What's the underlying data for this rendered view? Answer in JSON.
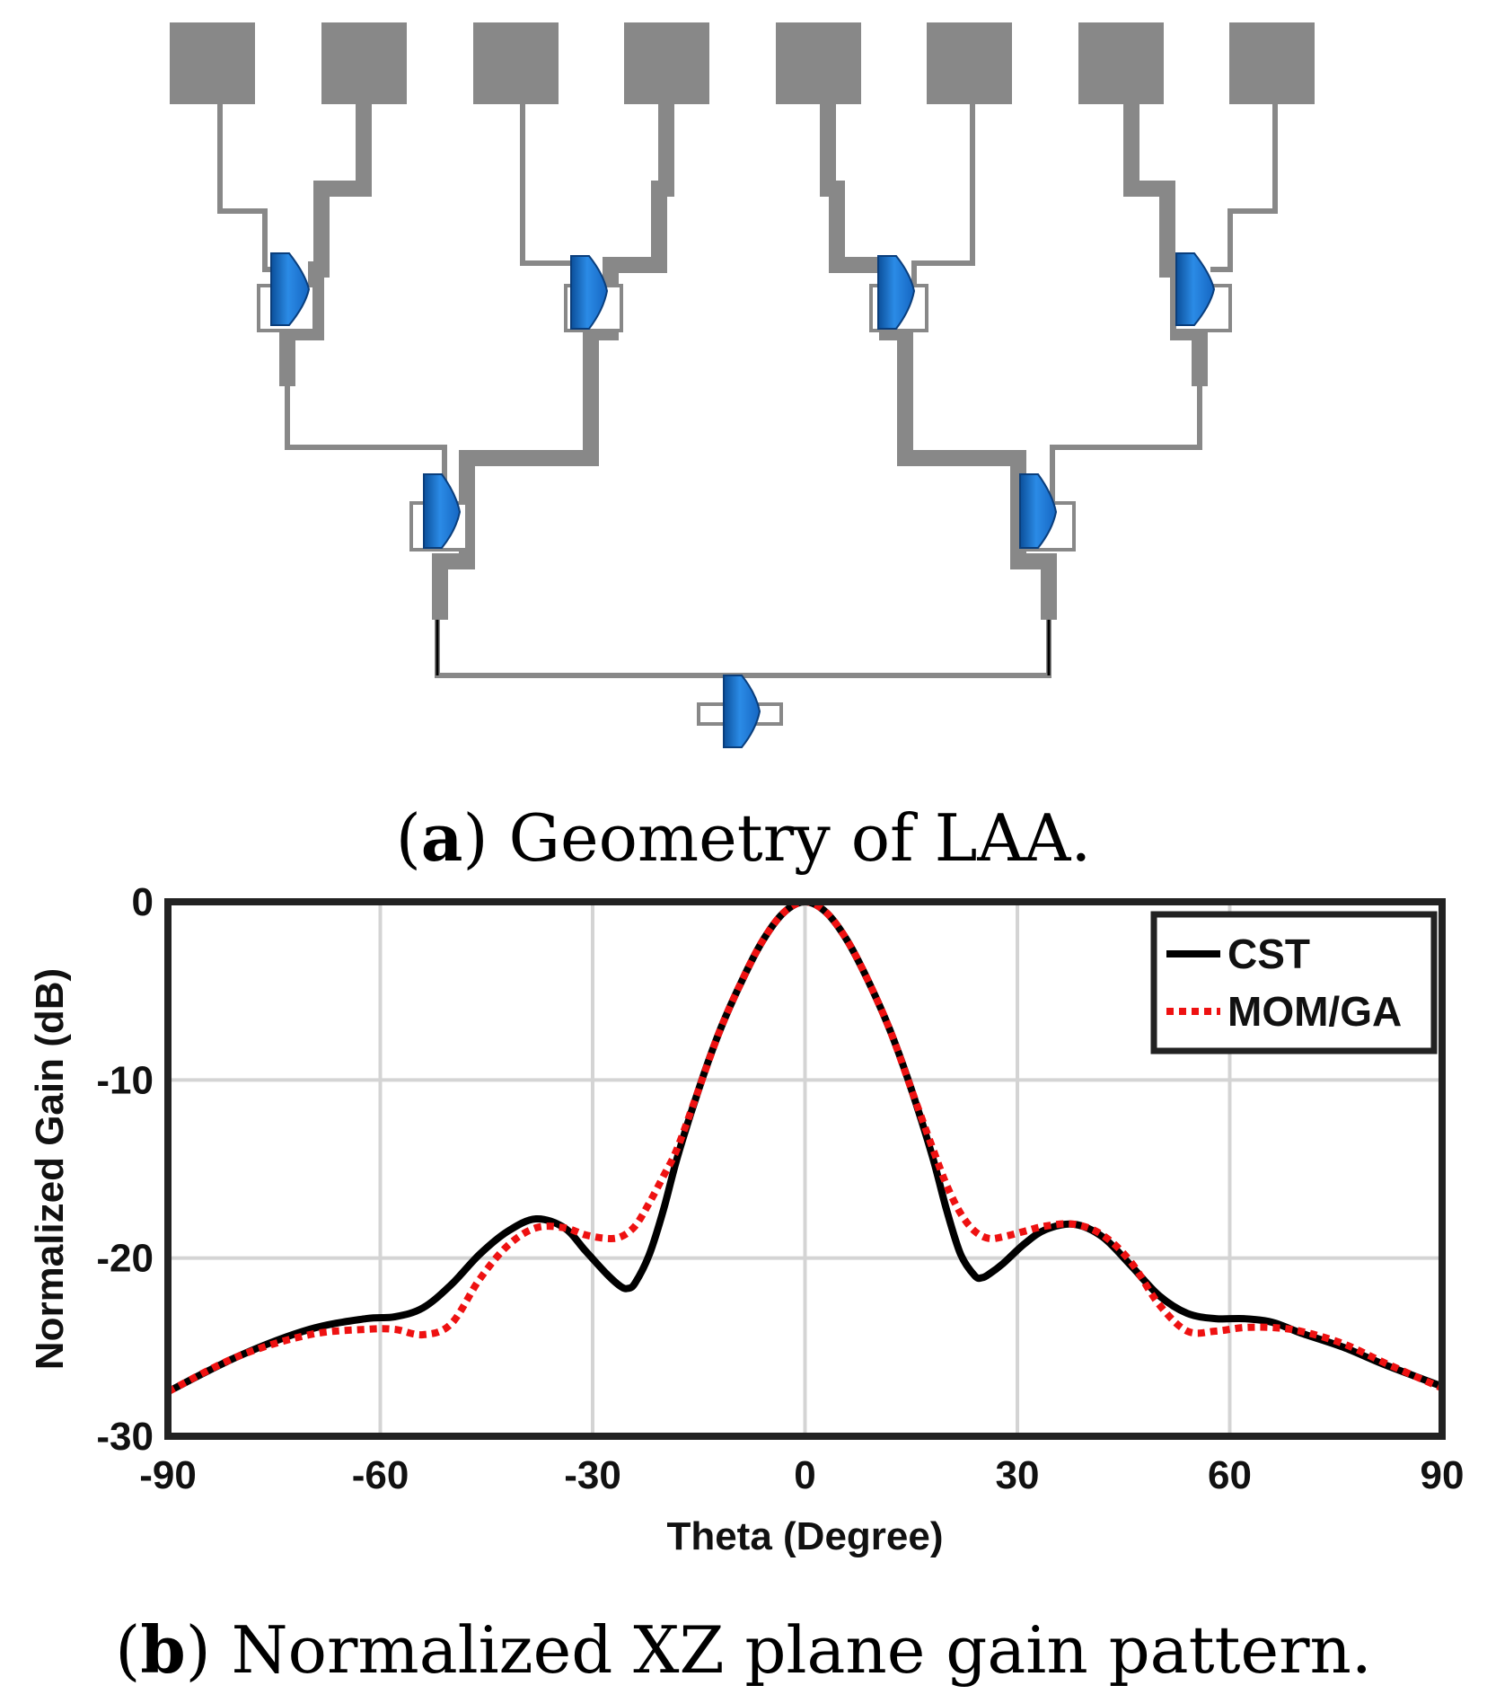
{
  "figure": {
    "caption_a": {
      "label": "a",
      "text": "Geometry of LAA."
    },
    "caption_b": {
      "label": "b",
      "text": "Normalized XZ plane gain pattern."
    }
  },
  "colors": {
    "trace": "#888888",
    "splitter": "#1e78d2",
    "cst": "#000000",
    "mom": "#ee1111",
    "grid": "#d4d4d4"
  },
  "chart_data": {
    "type": "line",
    "title": "",
    "xlabel": "Theta (Degree)",
    "ylabel": "Normalized Gain (dB)",
    "xlim": [
      -90,
      90
    ],
    "ylim": [
      -30,
      0
    ],
    "xticks": [
      -90,
      -60,
      -30,
      0,
      30,
      60,
      90
    ],
    "yticks": [
      0,
      -10,
      -20,
      -30
    ],
    "grid": true,
    "legend_position": "top-right",
    "series": [
      {
        "name": "CST",
        "style": "solid",
        "color": "#000000",
        "x": [
          -90,
          -80,
          -70,
          -62,
          -58,
          -54,
          -50,
          -46,
          -42,
          -38,
          -34,
          -31,
          -28,
          -26,
          -25,
          -24,
          -22,
          -20,
          -18,
          -15,
          -12,
          -9,
          -6,
          -3,
          0,
          3,
          6,
          9,
          12,
          15,
          18,
          20,
          22,
          24,
          25,
          26,
          28,
          31,
          34,
          38,
          42,
          46,
          50,
          54,
          58,
          62,
          66,
          70,
          76,
          82,
          90
        ],
        "y": [
          -27.5,
          -25.5,
          -24,
          -23.4,
          -23.3,
          -22.8,
          -21.5,
          -19.8,
          -18.5,
          -17.8,
          -18.3,
          -19.6,
          -20.9,
          -21.6,
          -21.7,
          -21.4,
          -19.8,
          -17.3,
          -14.3,
          -10.5,
          -7.2,
          -4.5,
          -2.2,
          -0.6,
          0,
          -0.6,
          -2.2,
          -4.5,
          -7.2,
          -10.5,
          -14.3,
          -17.3,
          -19.8,
          -21.0,
          -21.1,
          -20.9,
          -20.3,
          -19.2,
          -18.4,
          -18.1,
          -18.8,
          -20.4,
          -22.1,
          -23.1,
          -23.4,
          -23.4,
          -23.6,
          -24.2,
          -25.0,
          -26.0,
          -27.2
        ]
      },
      {
        "name": "MOM/GA",
        "style": "dotted",
        "color": "#ee1111",
        "x": [
          -90,
          -80,
          -70,
          -62,
          -58,
          -54,
          -50,
          -46,
          -42,
          -38,
          -34,
          -31,
          -28,
          -26,
          -24,
          -22,
          -20,
          -18,
          -15,
          -12,
          -9,
          -6,
          -3,
          0,
          3,
          6,
          9,
          12,
          15,
          18,
          20,
          22,
          24,
          26,
          28,
          31,
          34,
          38,
          42,
          46,
          50,
          54,
          58,
          62,
          66,
          70,
          76,
          82,
          90
        ],
        "y": [
          -27.5,
          -25.5,
          -24.3,
          -24.0,
          -24.0,
          -24.3,
          -23.7,
          -21.2,
          -19.3,
          -18.3,
          -18.3,
          -18.7,
          -18.9,
          -18.8,
          -18.2,
          -16.9,
          -15.4,
          -13.8,
          -10.5,
          -7.2,
          -4.5,
          -2.2,
          -0.6,
          0,
          -0.6,
          -2.2,
          -4.5,
          -7.2,
          -10.5,
          -13.8,
          -15.9,
          -17.5,
          -18.5,
          -18.9,
          -18.8,
          -18.5,
          -18.2,
          -18.1,
          -18.7,
          -20.2,
          -22.6,
          -24.1,
          -24.1,
          -23.9,
          -23.9,
          -24.1,
          -24.8,
          -25.9,
          -27.3
        ]
      }
    ]
  }
}
